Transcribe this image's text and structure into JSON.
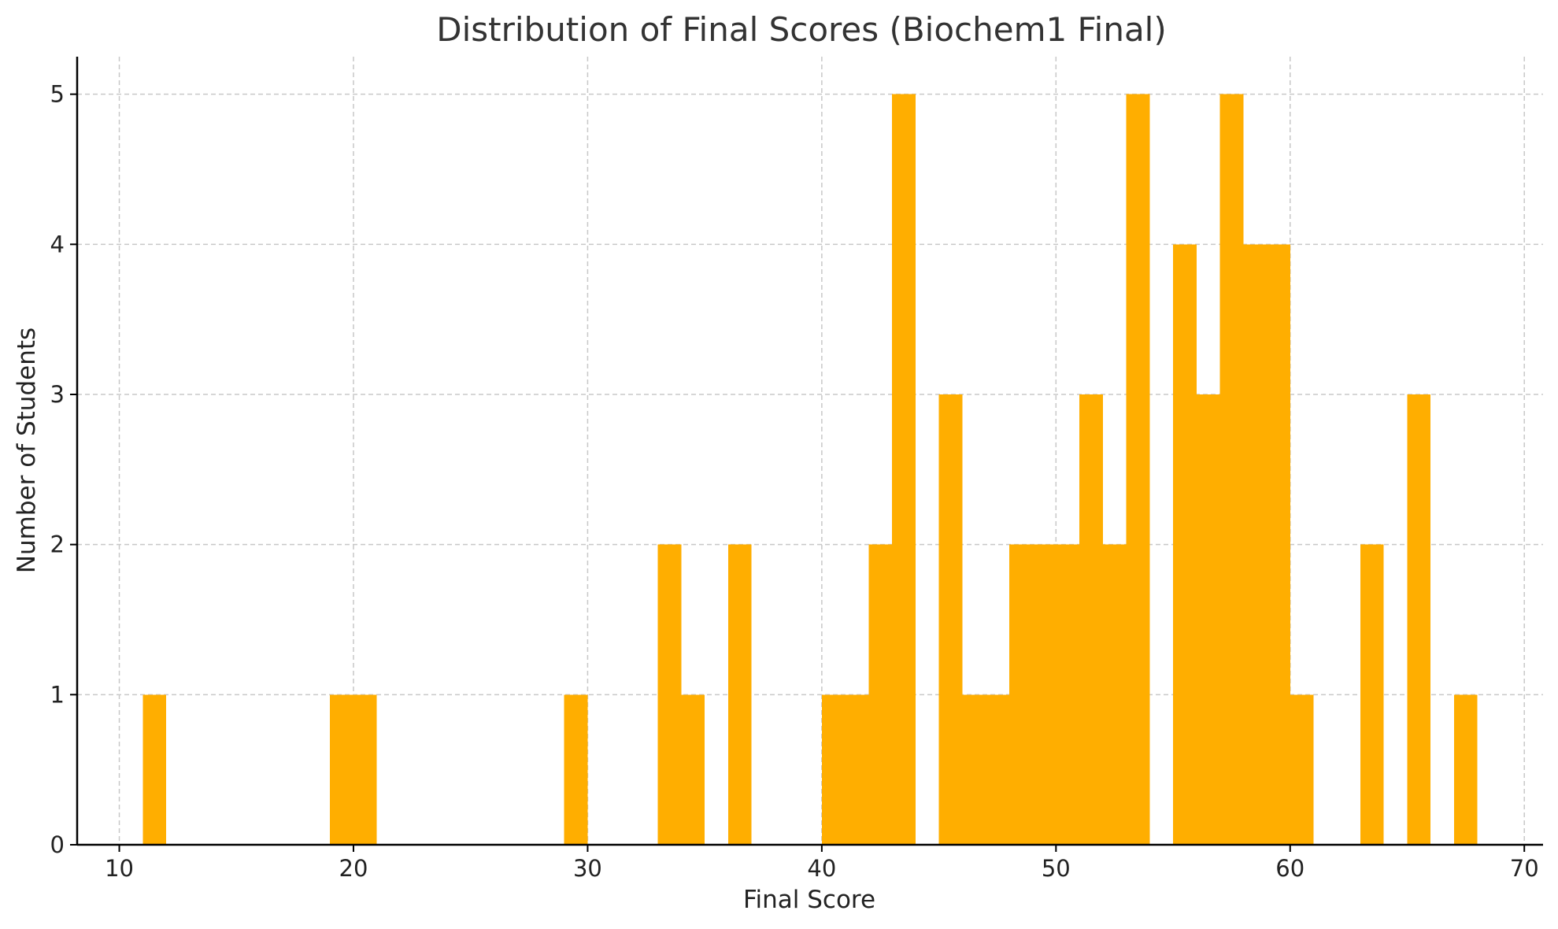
{
  "chart_data": {
    "type": "bar",
    "title": "Distribution of Final Scores (Biochem1 Final)",
    "xlabel": "Final Score",
    "ylabel": "Number of Students",
    "xlim": [
      8.2,
      70.8
    ],
    "ylim": [
      0,
      5.25
    ],
    "xticks": [
      "10",
      "20",
      "30",
      "40",
      "50",
      "60",
      "70"
    ],
    "yticks": [
      "0",
      "1",
      "2",
      "3",
      "4",
      "5"
    ],
    "grid": true,
    "bar_color": "#FFAE00",
    "bins": [
      {
        "start": 11,
        "end": 12,
        "count": 1
      },
      {
        "start": 19,
        "end": 20,
        "count": 1
      },
      {
        "start": 20,
        "end": 21,
        "count": 1
      },
      {
        "start": 29,
        "end": 30,
        "count": 1
      },
      {
        "start": 33,
        "end": 34,
        "count": 2
      },
      {
        "start": 34,
        "end": 35,
        "count": 1
      },
      {
        "start": 36,
        "end": 37,
        "count": 2
      },
      {
        "start": 40,
        "end": 41,
        "count": 1
      },
      {
        "start": 41,
        "end": 42,
        "count": 1
      },
      {
        "start": 42,
        "end": 43,
        "count": 2
      },
      {
        "start": 43,
        "end": 44,
        "count": 5
      },
      {
        "start": 45,
        "end": 46,
        "count": 3
      },
      {
        "start": 46,
        "end": 47,
        "count": 1
      },
      {
        "start": 47,
        "end": 48,
        "count": 1
      },
      {
        "start": 48,
        "end": 49,
        "count": 2
      },
      {
        "start": 49,
        "end": 50,
        "count": 2
      },
      {
        "start": 50,
        "end": 51,
        "count": 2
      },
      {
        "start": 51,
        "end": 52,
        "count": 3
      },
      {
        "start": 52,
        "end": 53,
        "count": 2
      },
      {
        "start": 53,
        "end": 54,
        "count": 5
      },
      {
        "start": 55,
        "end": 56,
        "count": 4
      },
      {
        "start": 56,
        "end": 57,
        "count": 3
      },
      {
        "start": 57,
        "end": 58,
        "count": 5
      },
      {
        "start": 58,
        "end": 59,
        "count": 4
      },
      {
        "start": 59,
        "end": 60,
        "count": 4
      },
      {
        "start": 60,
        "end": 61,
        "count": 1
      },
      {
        "start": 63,
        "end": 64,
        "count": 2
      },
      {
        "start": 65,
        "end": 66,
        "count": 3
      },
      {
        "start": 67,
        "end": 68,
        "count": 1
      }
    ]
  }
}
